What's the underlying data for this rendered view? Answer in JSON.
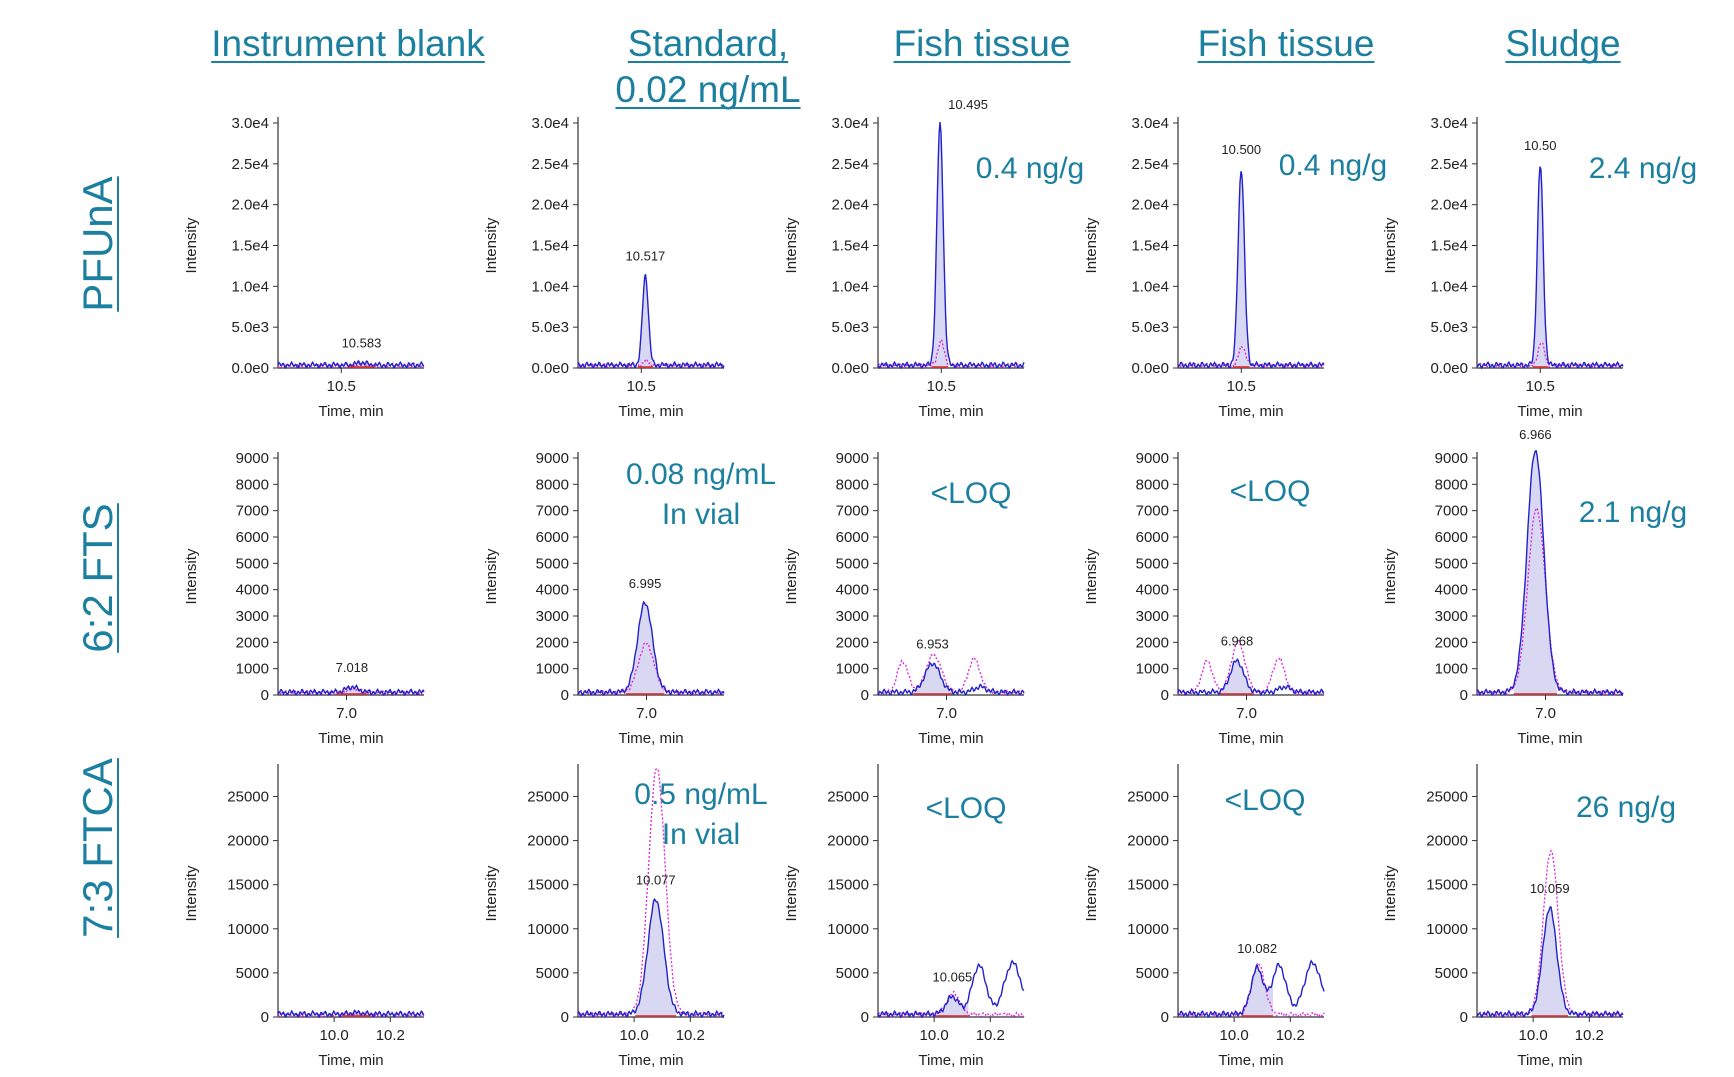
{
  "column_headers": [
    "Instrument blank",
    "Standard,\n0.02 ng/mL",
    "Fish tissue",
    "Fish tissue",
    "Sludge"
  ],
  "row_labels": [
    "PFUnA",
    "6:2 FTS",
    "7:3 FTCA"
  ],
  "colors": {
    "label": "#1b7fa0",
    "primary_trace": "#2222cc",
    "secondary_trace": "#dd22dd",
    "baseline": "#e02020"
  },
  "chart_data": [
    {
      "type": "line",
      "row": "PFUnA",
      "xlabel": "Time, min",
      "ylabel": "Intensity",
      "xlim": [
        10.24,
        10.84
      ],
      "ylim": [
        0,
        30000
      ],
      "yticks": [
        0,
        5000,
        10000,
        15000,
        20000,
        25000,
        30000
      ],
      "ytick_labels": [
        "0.0e0",
        "5.0e3",
        "1.0e4",
        "1.5e4",
        "2.0e4",
        "2.5e4",
        "3.0e4"
      ],
      "xticks": [
        10.5
      ],
      "xtick_labels": [
        "10.5"
      ],
      "panels": [
        {
          "col": 0,
          "peak_rt": 10.583,
          "peak_label": "10.583",
          "peak_height": 300,
          "peak_width": 0.02,
          "secondary_ratio": 0.9,
          "annotation": ""
        },
        {
          "col": 1,
          "peak_rt": 10.517,
          "peak_label": "10.517",
          "peak_height": 11000,
          "peak_width": 0.012,
          "secondary_ratio": 0.05,
          "annotation": ""
        },
        {
          "col": 2,
          "peak_rt": 10.495,
          "peak_label": "10.495",
          "peak_height": 29500,
          "peak_width": 0.013,
          "secondary_ratio": 0.1,
          "annotation": "0.4 ng/g"
        },
        {
          "col": 3,
          "peak_rt": 10.5,
          "peak_label": "10.500",
          "peak_height": 24000,
          "peak_width": 0.013,
          "secondary_ratio": 0.1,
          "annotation": "0.4 ng/g"
        },
        {
          "col": 4,
          "peak_rt": 10.5,
          "peak_label": "10.50",
          "peak_height": 24500,
          "peak_width": 0.012,
          "secondary_ratio": 0.12,
          "annotation": "2.4 ng/g"
        }
      ]
    },
    {
      "type": "line",
      "row": "6:2 FTS",
      "xlabel": "Time, min",
      "ylabel": "Intensity",
      "xlim": [
        6.77,
        7.26
      ],
      "ylim": [
        0,
        9000
      ],
      "yticks": [
        0,
        1000,
        2000,
        3000,
        4000,
        5000,
        6000,
        7000,
        8000,
        9000
      ],
      "ytick_labels": [
        "0",
        "1000",
        "2000",
        "3000",
        "4000",
        "5000",
        "6000",
        "7000",
        "8000",
        "9000"
      ],
      "xticks": [
        7.0
      ],
      "xtick_labels": [
        "7.0"
      ],
      "panels": [
        {
          "col": 0,
          "peak_rt": 7.018,
          "peak_label": "7.018",
          "peak_height": 200,
          "peak_width": 0.02,
          "secondary_ratio": 0.8,
          "annotation": ""
        },
        {
          "col": 1,
          "peak_rt": 6.995,
          "peak_label": "6.995",
          "peak_height": 3400,
          "peak_width": 0.025,
          "secondary_ratio": 0.55,
          "annotation": "0.08 ng/mL\nIn vial"
        },
        {
          "col": 2,
          "peak_rt": 6.953,
          "peak_label": "6.953",
          "peak_height": 1100,
          "peak_width": 0.025,
          "secondary_ratio": 1.3,
          "annotation": "<LOQ"
        },
        {
          "col": 3,
          "peak_rt": 6.968,
          "peak_label": "6.968",
          "peak_height": 1200,
          "peak_width": 0.022,
          "secondary_ratio": 1.6,
          "annotation": "<LOQ"
        },
        {
          "col": 4,
          "peak_rt": 6.966,
          "peak_label": "6.966",
          "peak_height": 9200,
          "peak_width": 0.028,
          "secondary_ratio": 0.76,
          "annotation": "2.1 ng/g"
        }
      ]
    },
    {
      "type": "line",
      "row": "7:3 FTCA",
      "xlabel": "Time, min",
      "ylabel": "Intensity",
      "xlim": [
        9.8,
        10.32
      ],
      "ylim": [
        0,
        28000
      ],
      "yticks": [
        0,
        5000,
        10000,
        15000,
        20000,
        25000
      ],
      "ytick_labels": [
        "0",
        "5000",
        "10000",
        "15000",
        "20000",
        "25000"
      ],
      "xticks": [
        10.0,
        10.2
      ],
      "xtick_labels": [
        "10.0",
        "10.2"
      ],
      "panels": [
        {
          "col": 0,
          "peak_rt": 10.08,
          "peak_label": "",
          "peak_height": 150,
          "peak_width": 0.02,
          "secondary_ratio": 1.0,
          "annotation": ""
        },
        {
          "col": 1,
          "peak_rt": 10.077,
          "peak_label": "10.077",
          "peak_height": 13000,
          "peak_width": 0.028,
          "secondary_ratio": 2.15,
          "annotation": "0.5 ng/mL\nIn vial"
        },
        {
          "col": 2,
          "peak_rt": 10.065,
          "peak_label": "10.065",
          "peak_height": 2000,
          "peak_width": 0.022,
          "secondary_ratio": 1.2,
          "annotation": "<LOQ"
        },
        {
          "col": 3,
          "peak_rt": 10.082,
          "peak_label": "10.082",
          "peak_height": 5200,
          "peak_width": 0.022,
          "secondary_ratio": 1.1,
          "annotation": "<LOQ"
        },
        {
          "col": 4,
          "peak_rt": 10.059,
          "peak_label": "10.059",
          "peak_height": 12000,
          "peak_width": 0.025,
          "secondary_ratio": 1.55,
          "annotation": "26 ng/g"
        }
      ]
    }
  ]
}
